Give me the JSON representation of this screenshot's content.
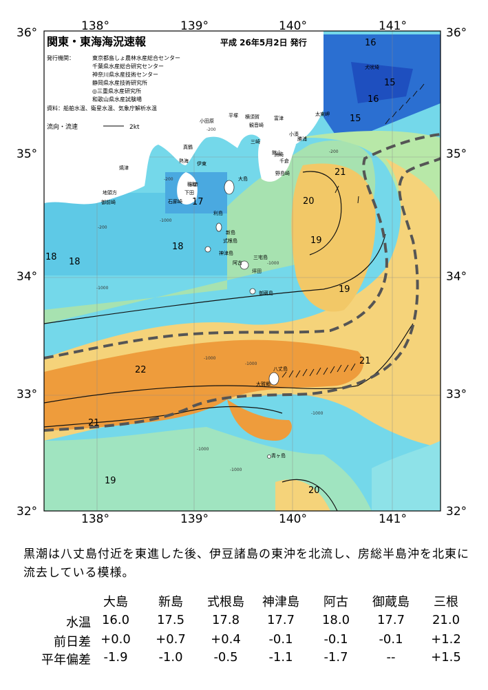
{
  "title": "関東・東海海況速報",
  "issue_date": "平成 26年5月2日 発行",
  "agencies": {
    "label": "発行機関：",
    "lines": [
      "東京都島しょ農林水産総合センター",
      "千葉県水産総合研究センター",
      "神奈川県水産技術センター",
      "静岡県水産技術研究所",
      "◎三重県水産研究所",
      "和歌山県水産試験場"
    ]
  },
  "sources": "資料：船舶水温、衛星水温、気象庁解析水温",
  "legend": {
    "label": "流向・流速",
    "value": "2kt"
  },
  "axes": {
    "lon_top": [
      "138°",
      "139°",
      "140°",
      "141°"
    ],
    "lon_bottom": [
      "138°",
      "139°",
      "140°",
      "141°"
    ],
    "lat_left": [
      "36°",
      "35°",
      "34°",
      "33°",
      "32°"
    ],
    "lat_right": [
      "36°",
      "35°",
      "34°",
      "33°",
      "32°"
    ]
  },
  "isotherm_labels": [
    "16",
    "15",
    "16",
    "15",
    "21",
    "20",
    "19",
    "18",
    "17",
    "18",
    "18",
    "19",
    "22",
    "21",
    "21",
    "19",
    "20"
  ],
  "depth_labels": [
    "-200",
    "-200",
    "-1000",
    "-1000",
    "-200",
    "-1000",
    "-1000",
    "-1000",
    "-1000",
    "-1000",
    "-200",
    "-1000"
  ],
  "place_names": [
    "犬吠埼",
    "太東岬",
    "勝浦",
    "小湊",
    "洲崎",
    "野島崎",
    "館山",
    "千倉",
    "三崎",
    "観音崎",
    "富津",
    "横須賀",
    "平塚",
    "小田原",
    "真鶴",
    "熱海",
    "伊東",
    "川奈",
    "石廊崎",
    "下田",
    "稲取",
    "焼津",
    "御前崎",
    "地頭方",
    "大島",
    "利島",
    "新島",
    "式根島",
    "神津島",
    "三宅島",
    "御蔵島",
    "八丈島",
    "大賀郷",
    "青ヶ島",
    "阿古",
    "坪田"
  ],
  "caption": "黒潮は八丈島付近を東進した後、伊豆諸島の東沖を北流し、房総半島沖を北東に流去している模様。",
  "table": {
    "columns": [
      "大島",
      "新島",
      "式根島",
      "神津島",
      "阿古",
      "御蔵島",
      "三根"
    ],
    "rows": [
      {
        "label": "水温",
        "values": [
          "16.0",
          "17.5",
          "17.8",
          "17.7",
          "18.0",
          "17.7",
          "21.0"
        ]
      },
      {
        "label": "前日差",
        "values": [
          "+0.0",
          "+0.7",
          "+0.4",
          "-0.1",
          "-0.1",
          "-0.1",
          "+1.2"
        ]
      },
      {
        "label": "平年偏差",
        "values": [
          "-1.9",
          "-1.0",
          "-0.5",
          "-1.1",
          "-1.7",
          "--",
          "+1.5"
        ]
      }
    ]
  },
  "colors": {
    "warm": "#f0a040",
    "mid": "#f7d77a",
    "cool": "#a9e3b8",
    "cyan": "#6fd3e8",
    "blue": "#2c7fd6",
    "land": "#ffffff",
    "kuroshio_path": "#555555"
  }
}
